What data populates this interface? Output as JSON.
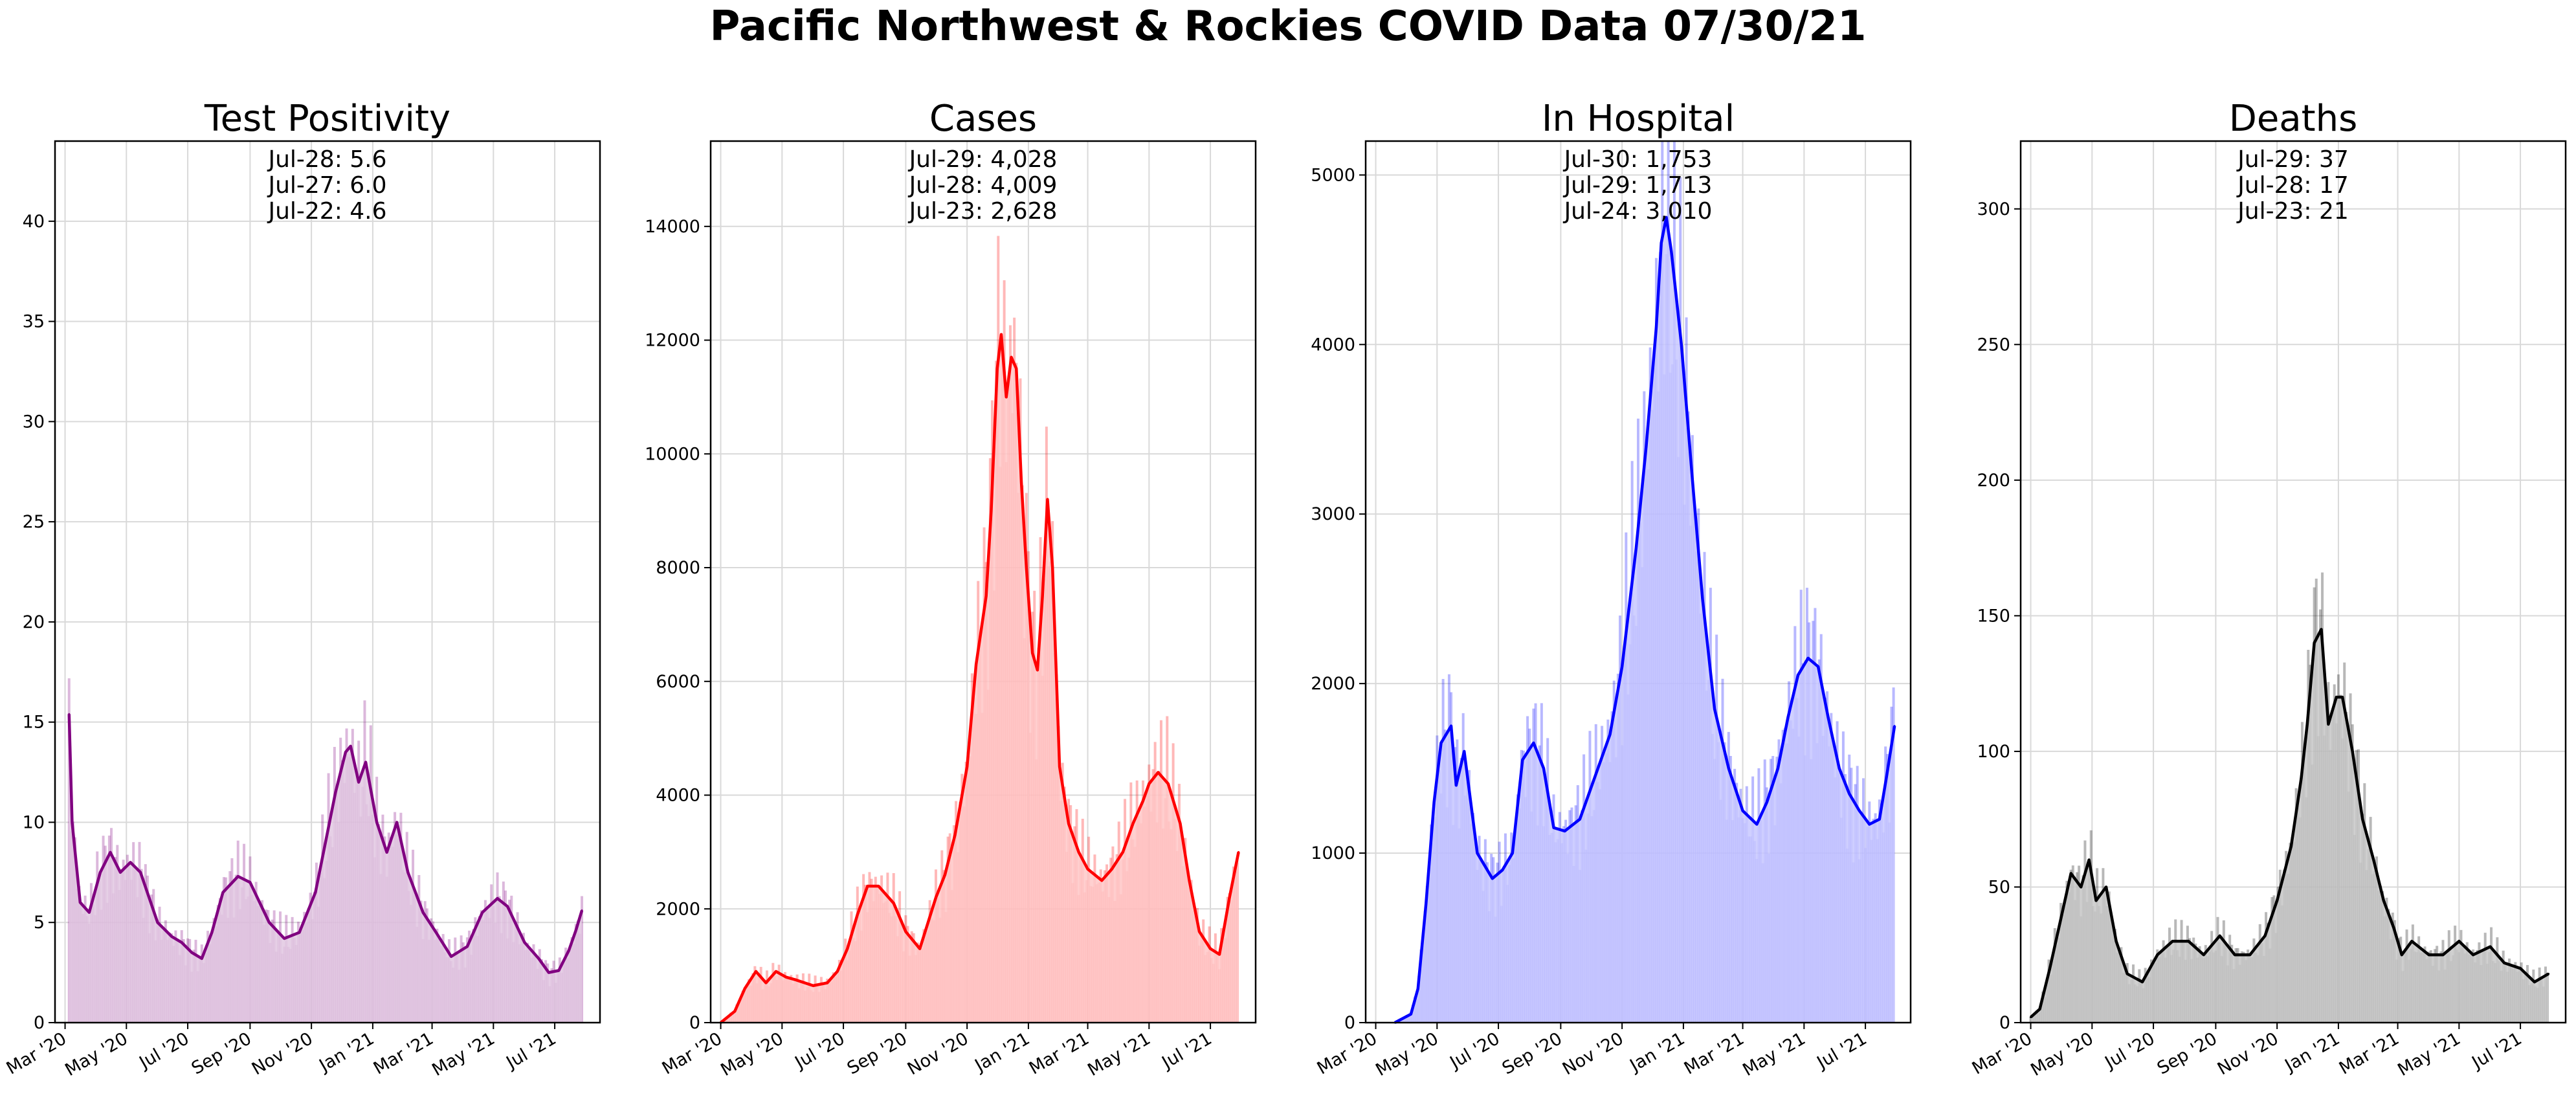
{
  "suptitle": "Pacific Northwest & Rockies COVID Data 07/30/21",
  "x_tick_labels": [
    "Mar '20",
    "May '20",
    "Jul '20",
    "Sep '20",
    "Nov '20",
    "Jan '21",
    "Mar '21",
    "May '21",
    "Jul '21"
  ],
  "chart_data": [
    {
      "type": "area",
      "title": "Test Positivity",
      "color": "#800080",
      "fill_color": "#e2c8e2",
      "xlim": [
        "2020-02-20",
        "2021-08-15"
      ],
      "ylim": [
        0,
        44
      ],
      "yticks": [
        0,
        5,
        10,
        15,
        20,
        25,
        30,
        35,
        40
      ],
      "grid": true,
      "annotations": [
        "Jul-28: 5.6",
        "Jul-27: 6.0",
        "Jul-22: 4.6"
      ],
      "series": [
        {
          "x": [
            "2020-03-05",
            "2020-03-08",
            "2020-03-12",
            "2020-03-16",
            "2020-03-25",
            "2020-04-05",
            "2020-04-15",
            "2020-04-25",
            "2020-05-05",
            "2020-05-15",
            "2020-06-01",
            "2020-06-15",
            "2020-06-25",
            "2020-07-05",
            "2020-07-15",
            "2020-07-25",
            "2020-08-05",
            "2020-08-20",
            "2020-09-01",
            "2020-09-20",
            "2020-10-05",
            "2020-10-20",
            "2020-11-05",
            "2020-11-15",
            "2020-11-25",
            "2020-12-05",
            "2020-12-10",
            "2020-12-18",
            "2020-12-25",
            "2021-01-05",
            "2021-01-15",
            "2021-01-25",
            "2021-02-05",
            "2021-02-20",
            "2021-03-05",
            "2021-03-20",
            "2021-04-05",
            "2021-04-20",
            "2021-05-05",
            "2021-05-15",
            "2021-06-01",
            "2021-06-15",
            "2021-06-25",
            "2021-07-05",
            "2021-07-15",
            "2021-07-22",
            "2021-07-28"
          ],
          "y": [
            15.4,
            10,
            8,
            6,
            5.5,
            7.5,
            8.5,
            7.5,
            8,
            7.5,
            5,
            4.3,
            4,
            3.5,
            3.2,
            4.5,
            6.5,
            7.3,
            7,
            5,
            4.2,
            4.5,
            6.5,
            9,
            11.5,
            13.5,
            13.8,
            12,
            13,
            10,
            8.5,
            10,
            7.5,
            5.5,
            4.5,
            3.3,
            3.8,
            5.5,
            6.2,
            5.8,
            4,
            3.2,
            2.5,
            2.6,
            3.6,
            4.6,
            5.6
          ]
        }
      ]
    },
    {
      "type": "area",
      "title": "Cases",
      "color": "#ff0000",
      "fill_color": "#ffc8c8",
      "xlim": [
        "2020-02-20",
        "2021-08-15"
      ],
      "ylim": [
        0,
        15500
      ],
      "yticks": [
        0,
        2000,
        4000,
        6000,
        8000,
        10000,
        12000,
        14000
      ],
      "grid": true,
      "annotations": [
        "Jul-29: 4,028",
        "Jul-28: 4,009",
        "Jul-23: 2,628"
      ],
      "series": [
        {
          "x": [
            "2020-03-01",
            "2020-03-15",
            "2020-03-25",
            "2020-04-05",
            "2020-04-15",
            "2020-04-25",
            "2020-05-05",
            "2020-05-15",
            "2020-06-01",
            "2020-06-15",
            "2020-06-25",
            "2020-07-05",
            "2020-07-15",
            "2020-07-25",
            "2020-08-05",
            "2020-08-20",
            "2020-09-01",
            "2020-09-15",
            "2020-10-01",
            "2020-10-10",
            "2020-10-20",
            "2020-11-01",
            "2020-11-10",
            "2020-11-20",
            "2020-11-25",
            "2020-12-01",
            "2020-12-05",
            "2020-12-10",
            "2020-12-15",
            "2020-12-20",
            "2020-12-25",
            "2020-12-30",
            "2021-01-05",
            "2021-01-10",
            "2021-01-15",
            "2021-01-20",
            "2021-01-25",
            "2021-02-01",
            "2021-02-10",
            "2021-02-20",
            "2021-03-01",
            "2021-03-15",
            "2021-03-25",
            "2021-04-05",
            "2021-04-15",
            "2021-04-25",
            "2021-05-01",
            "2021-05-10",
            "2021-05-20",
            "2021-06-01",
            "2021-06-10",
            "2021-06-20",
            "2021-07-01",
            "2021-07-10",
            "2021-07-20",
            "2021-07-29"
          ],
          "y": [
            0,
            200,
            600,
            900,
            700,
            900,
            800,
            750,
            650,
            700,
            900,
            1300,
            1900,
            2400,
            2400,
            2100,
            1600,
            1300,
            2200,
            2600,
            3300,
            4500,
            6300,
            7500,
            9000,
            11500,
            12100,
            11000,
            11700,
            11500,
            9500,
            8000,
            6500,
            6200,
            7500,
            9200,
            8000,
            4500,
            3500,
            3000,
            2700,
            2500,
            2700,
            3000,
            3500,
            3900,
            4200,
            4400,
            4200,
            3500,
            2500,
            1600,
            1300,
            1200,
            2200,
            3000
          ]
        }
      ]
    },
    {
      "type": "area",
      "title": "In Hospital",
      "color": "#0000ff",
      "fill_color": "#c8c8ff",
      "xlim": [
        "2020-02-20",
        "2021-08-15"
      ],
      "ylim": [
        0,
        5200
      ],
      "yticks": [
        0,
        1000,
        2000,
        3000,
        4000,
        5000
      ],
      "grid": true,
      "annotations": [
        "Jul-30: 1,753",
        "Jul-29: 1,713",
        "Jul-24: 3,010"
      ],
      "series": [
        {
          "x": [
            "2020-03-20",
            "2020-04-05",
            "2020-04-12",
            "2020-04-20",
            "2020-04-28",
            "2020-05-05",
            "2020-05-15",
            "2020-05-20",
            "2020-05-28",
            "2020-06-10",
            "2020-06-25",
            "2020-07-05",
            "2020-07-15",
            "2020-07-25",
            "2020-08-05",
            "2020-08-15",
            "2020-08-25",
            "2020-09-05",
            "2020-09-20",
            "2020-10-05",
            "2020-10-20",
            "2020-11-01",
            "2020-11-15",
            "2020-11-25",
            "2020-12-05",
            "2020-12-10",
            "2020-12-15",
            "2020-12-20",
            "2020-12-30",
            "2021-01-10",
            "2021-01-20",
            "2021-02-01",
            "2021-02-15",
            "2021-03-01",
            "2021-03-15",
            "2021-03-25",
            "2021-04-05",
            "2021-04-15",
            "2021-04-25",
            "2021-05-05",
            "2021-05-15",
            "2021-05-25",
            "2021-06-05",
            "2021-06-15",
            "2021-06-25",
            "2021-07-05",
            "2021-07-15",
            "2021-07-22",
            "2021-07-30"
          ],
          "y": [
            0,
            50,
            200,
            700,
            1300,
            1650,
            1750,
            1400,
            1600,
            1000,
            850,
            900,
            1000,
            1550,
            1650,
            1500,
            1150,
            1130,
            1200,
            1450,
            1700,
            2100,
            2800,
            3400,
            4100,
            4600,
            4750,
            4550,
            4000,
            3200,
            2500,
            1850,
            1500,
            1250,
            1170,
            1300,
            1500,
            1800,
            2050,
            2150,
            2100,
            1800,
            1500,
            1350,
            1250,
            1170,
            1200,
            1450,
            1750
          ]
        }
      ]
    },
    {
      "type": "area",
      "title": "Deaths",
      "color": "#000000",
      "fill_color": "#c8c8c8",
      "xlim": [
        "2020-02-20",
        "2021-08-15"
      ],
      "ylim": [
        0,
        325
      ],
      "yticks": [
        0,
        50,
        100,
        150,
        200,
        250,
        300
      ],
      "grid": true,
      "annotations": [
        "Jul-29: 37",
        "Jul-28: 17",
        "Jul-23: 21"
      ],
      "series": [
        {
          "x": [
            "2020-03-01",
            "2020-03-10",
            "2020-03-20",
            "2020-04-01",
            "2020-04-10",
            "2020-04-20",
            "2020-04-28",
            "2020-05-05",
            "2020-05-15",
            "2020-05-25",
            "2020-06-05",
            "2020-06-20",
            "2020-07-05",
            "2020-07-20",
            "2020-08-05",
            "2020-08-20",
            "2020-09-05",
            "2020-09-20",
            "2020-10-05",
            "2020-10-20",
            "2020-11-01",
            "2020-11-15",
            "2020-11-25",
            "2020-12-01",
            "2020-12-08",
            "2020-12-15",
            "2020-12-22",
            "2020-12-30",
            "2021-01-05",
            "2021-01-15",
            "2021-01-25",
            "2021-02-05",
            "2021-02-15",
            "2021-02-25",
            "2021-03-05",
            "2021-03-15",
            "2021-04-01",
            "2021-04-15",
            "2021-05-01",
            "2021-05-15",
            "2021-06-01",
            "2021-06-15",
            "2021-07-01",
            "2021-07-15",
            "2021-07-29"
          ],
          "y": [
            2,
            5,
            20,
            40,
            55,
            50,
            60,
            45,
            50,
            30,
            18,
            15,
            25,
            30,
            30,
            25,
            32,
            25,
            25,
            32,
            45,
            65,
            90,
            110,
            140,
            145,
            110,
            120,
            120,
            100,
            75,
            60,
            45,
            35,
            25,
            30,
            25,
            25,
            30,
            25,
            28,
            22,
            20,
            15,
            18
          ]
        }
      ]
    }
  ]
}
